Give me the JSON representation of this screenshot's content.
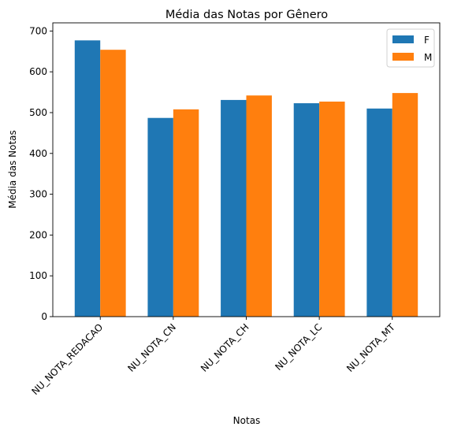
{
  "chart_data": {
    "type": "bar",
    "title": "Média das Notas por Gênero",
    "xlabel": "Notas",
    "ylabel": "Média das Notas",
    "categories": [
      "NU_NOTA_REDACAO",
      "NU_NOTA_CN",
      "NU_NOTA_CH",
      "NU_NOTA_LC",
      "NU_NOTA_MT"
    ],
    "series": [
      {
        "name": "F",
        "color": "#1f77b4",
        "values": [
          677,
          487,
          531,
          523,
          510
        ]
      },
      {
        "name": "M",
        "color": "#ff7f0e",
        "values": [
          654,
          508,
          542,
          527,
          548
        ]
      }
    ],
    "ylim": [
      0,
      720
    ],
    "yticks": [
      0,
      100,
      200,
      300,
      400,
      500,
      600,
      700
    ],
    "legend": "top-right",
    "grid": false
  }
}
